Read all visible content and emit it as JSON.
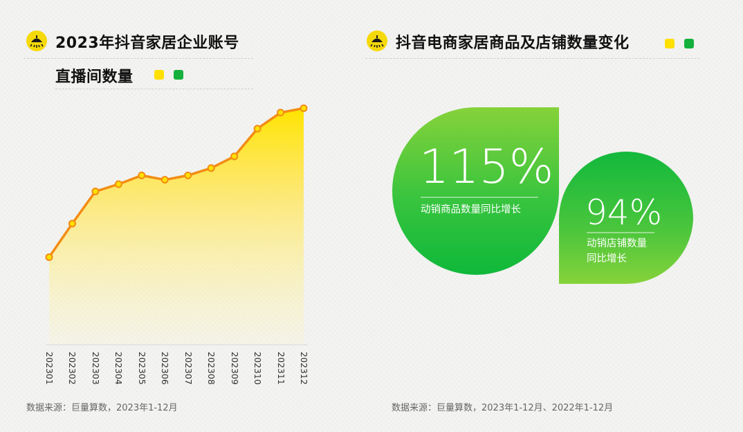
{
  "left_panel": {
    "title_line1": "2023年抖音家居企业账号",
    "title_line2": "直播间数量",
    "legend_colors": [
      "#ffe000",
      "#14b03c"
    ],
    "source": "数据来源：巨量算数，2023年1-12月"
  },
  "right_panel": {
    "title": "抖音电商家居商品及店铺数量变化",
    "legend_colors": [
      "#ffe000",
      "#14b03c"
    ],
    "stat1_value": "115%",
    "stat1_label": "动销商品数量同比增长",
    "stat2_value": "94%",
    "stat2_label_line1": "动销店铺数量",
    "stat2_label_line2": "同比增长",
    "source": "数据来源：巨量算数，2023年1-12月、2022年1-12月"
  },
  "colors": {
    "line": "#f28c14",
    "area_top": "#ffe400",
    "green_light": "#7ed23a",
    "green_dark": "#0fb83a",
    "icon_yellow": "#f5d90a"
  },
  "chart_data": {
    "type": "area",
    "categories": [
      "202301",
      "202302",
      "202303",
      "202304",
      "202305",
      "202306",
      "202307",
      "202308",
      "202309",
      "202310",
      "202311",
      "202312"
    ],
    "values": [
      15,
      38,
      60,
      65,
      71,
      68,
      71,
      76,
      84,
      103,
      114,
      117
    ],
    "ylim": [
      -45,
      120
    ],
    "grid": false,
    "legend": "none"
  }
}
